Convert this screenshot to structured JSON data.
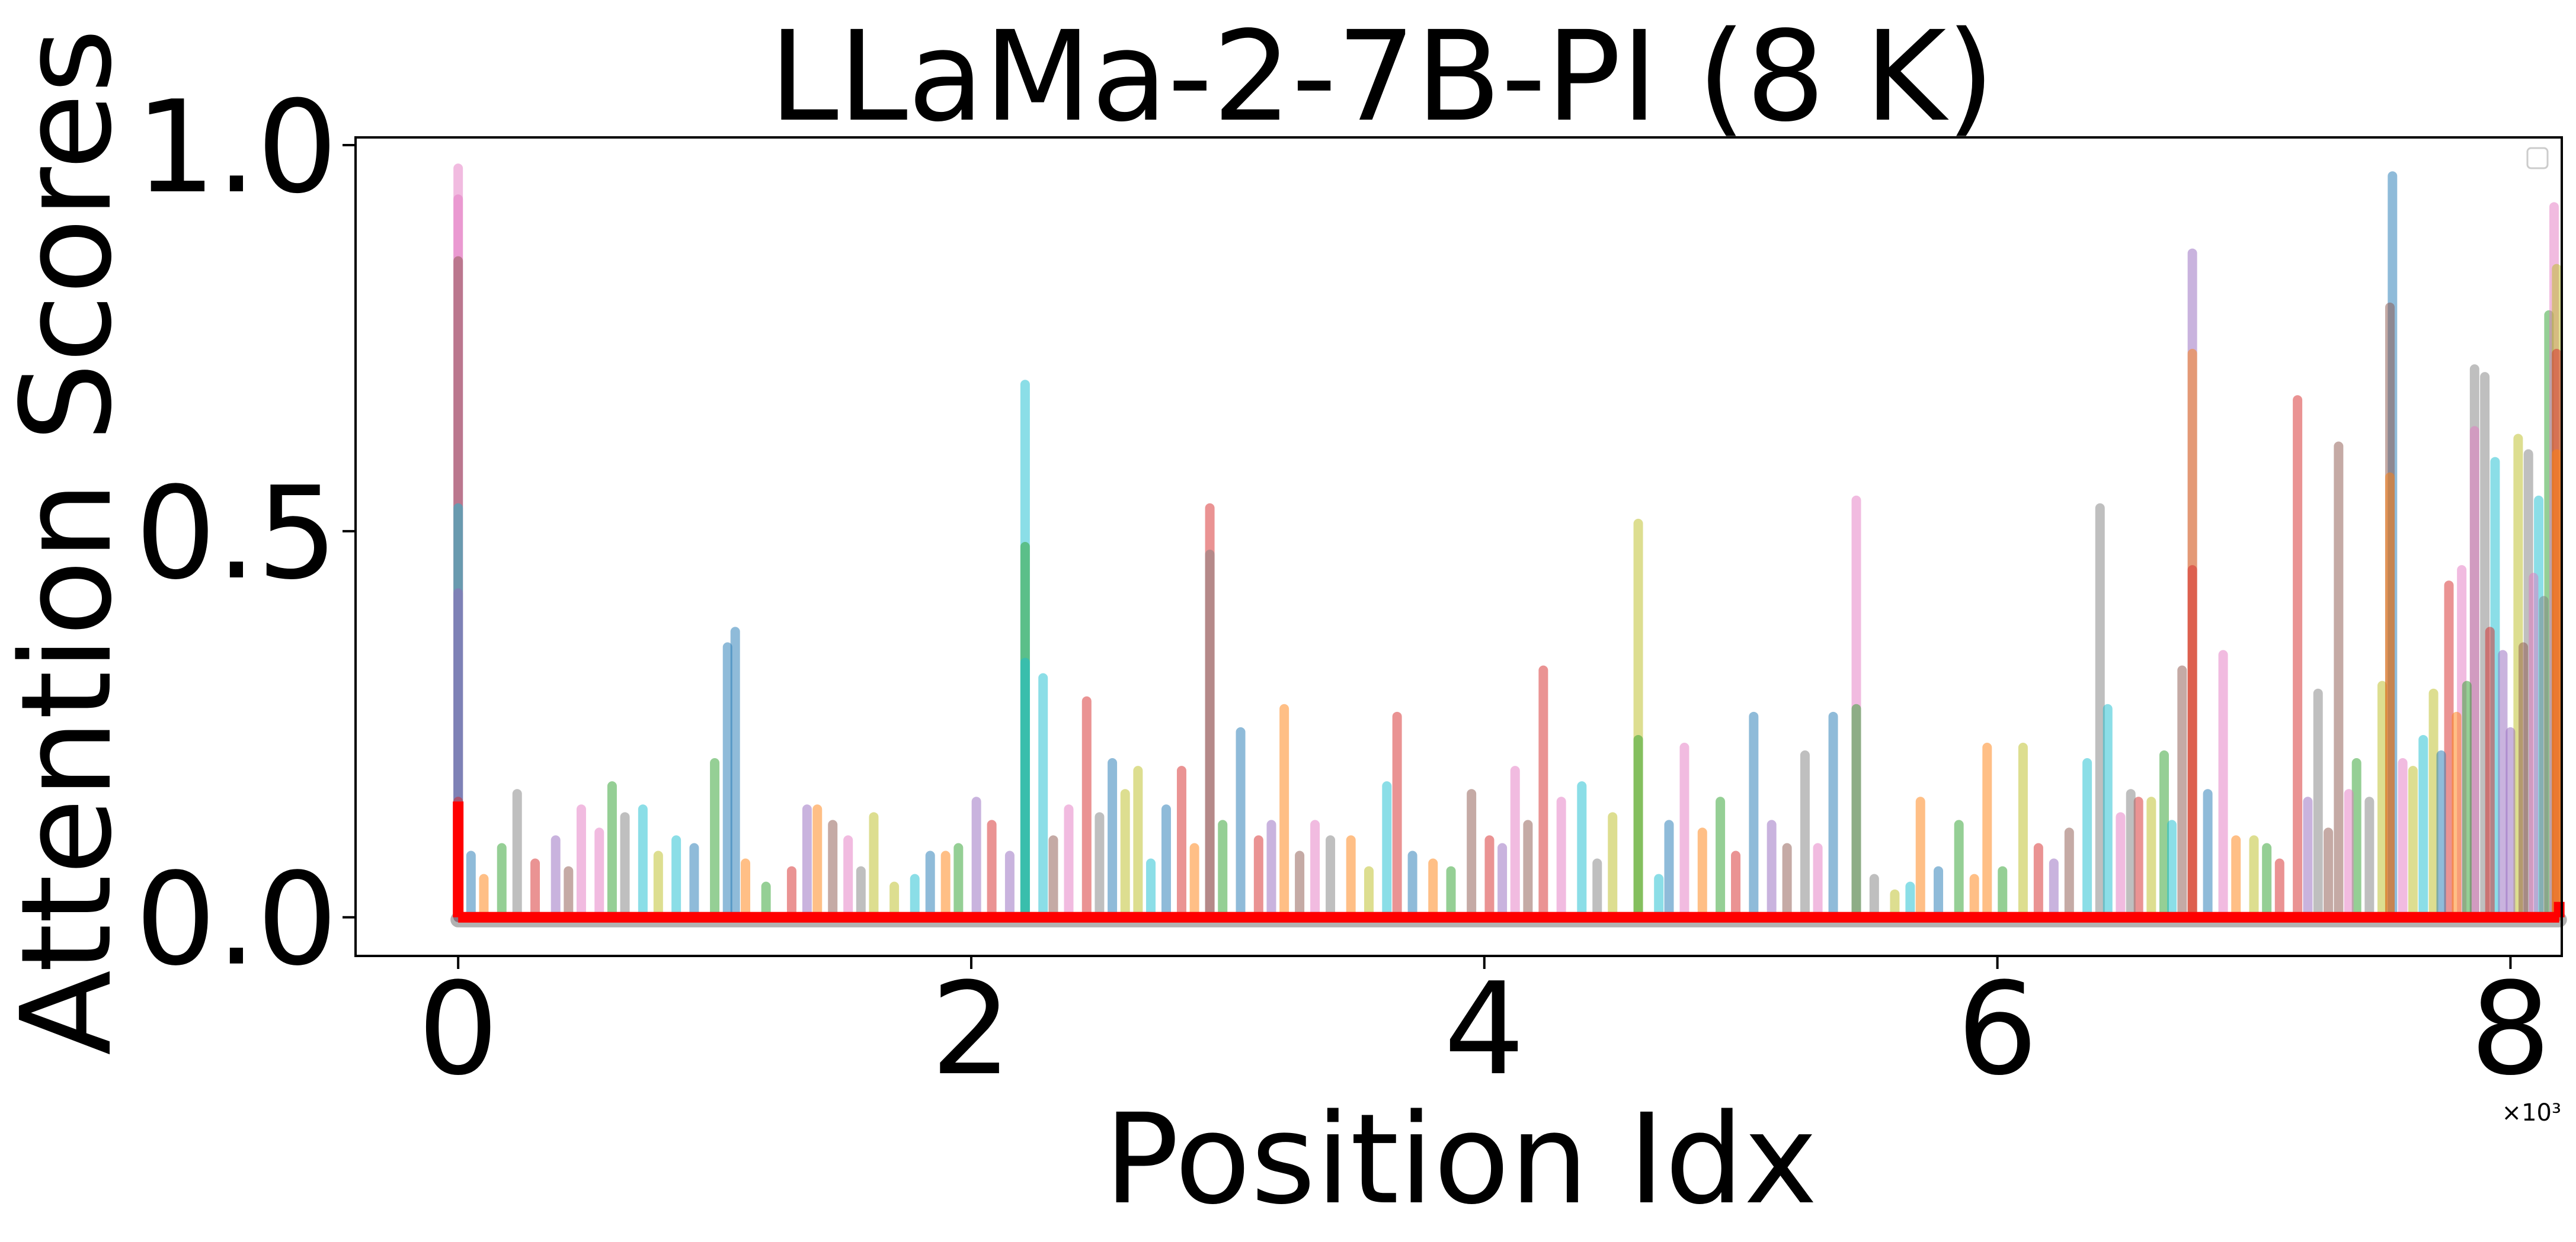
{
  "chart_data": {
    "type": "line",
    "title": "LLaMa-2-7B-PI (8 K)",
    "xlabel": "Position Idx",
    "ylabel": "Attention Scores",
    "x_multiplier_label": "×10³",
    "xlim": [
      -0.4,
      8.2
    ],
    "ylim": [
      -0.05,
      1.01
    ],
    "x_ticks": [
      0,
      2,
      4,
      6,
      8
    ],
    "y_ticks": [
      0.0,
      0.5,
      1.0
    ],
    "x_tick_labels": [
      "0",
      "2",
      "4",
      "6",
      "8"
    ],
    "y_tick_labels": [
      "0.0",
      "0.5",
      "1.0"
    ],
    "grid": false,
    "legend": {
      "placement": "top-right",
      "entries": []
    },
    "x_units": "thousands of positions",
    "series_colors": [
      "#1f77b4",
      "#ff7f0e",
      "#2ca02c",
      "#d62728",
      "#9467bd",
      "#8c564b",
      "#e377c2",
      "#7f7f7f",
      "#bcbd22",
      "#17becf"
    ],
    "baseline_series": {
      "color": "#ff0000",
      "y": 0.0,
      "x_range": [
        0,
        8.19
      ],
      "start_spike": 0.15
    },
    "spikes": [
      {
        "x": 0.0,
        "y": 0.97,
        "c": 6
      },
      {
        "x": 0.0,
        "y": 0.93,
        "c": 6
      },
      {
        "x": 0.0,
        "y": 0.85,
        "c": 5
      },
      {
        "x": 0.0,
        "y": 0.53,
        "c": 9
      },
      {
        "x": 0.0,
        "y": 0.42,
        "c": 4
      },
      {
        "x": 0.0,
        "y": 0.15,
        "c": 3
      },
      {
        "x": 0.23,
        "y": 0.16,
        "c": 7
      },
      {
        "x": 0.48,
        "y": 0.14,
        "c": 6
      },
      {
        "x": 0.6,
        "y": 0.17,
        "c": 2
      },
      {
        "x": 0.72,
        "y": 0.14,
        "c": 9
      },
      {
        "x": 1.0,
        "y": 0.2,
        "c": 2
      },
      {
        "x": 1.05,
        "y": 0.35,
        "c": 0
      },
      {
        "x": 1.08,
        "y": 0.37,
        "c": 0
      },
      {
        "x": 1.4,
        "y": 0.14,
        "c": 1
      },
      {
        "x": 1.62,
        "y": 0.13,
        "c": 8
      },
      {
        "x": 2.02,
        "y": 0.15,
        "c": 4
      },
      {
        "x": 2.21,
        "y": 0.69,
        "c": 9
      },
      {
        "x": 2.21,
        "y": 0.48,
        "c": 2
      },
      {
        "x": 2.21,
        "y": 0.33,
        "c": 9
      },
      {
        "x": 2.28,
        "y": 0.31,
        "c": 9
      },
      {
        "x": 2.45,
        "y": 0.28,
        "c": 3
      },
      {
        "x": 2.55,
        "y": 0.2,
        "c": 0
      },
      {
        "x": 2.65,
        "y": 0.19,
        "c": 8
      },
      {
        "x": 2.82,
        "y": 0.19,
        "c": 3
      },
      {
        "x": 2.93,
        "y": 0.53,
        "c": 3
      },
      {
        "x": 2.93,
        "y": 0.47,
        "c": 7
      },
      {
        "x": 3.05,
        "y": 0.24,
        "c": 0
      },
      {
        "x": 3.22,
        "y": 0.27,
        "c": 1
      },
      {
        "x": 3.48,
        "y": 0.1,
        "c": 1
      },
      {
        "x": 3.66,
        "y": 0.26,
        "c": 3
      },
      {
        "x": 3.95,
        "y": 0.16,
        "c": 5
      },
      {
        "x": 4.12,
        "y": 0.19,
        "c": 6
      },
      {
        "x": 4.23,
        "y": 0.32,
        "c": 3
      },
      {
        "x": 4.38,
        "y": 0.17,
        "c": 9
      },
      {
        "x": 4.6,
        "y": 0.51,
        "c": 8
      },
      {
        "x": 4.6,
        "y": 0.23,
        "c": 2
      },
      {
        "x": 4.78,
        "y": 0.22,
        "c": 6
      },
      {
        "x": 5.05,
        "y": 0.26,
        "c": 0
      },
      {
        "x": 5.25,
        "y": 0.21,
        "c": 7
      },
      {
        "x": 5.36,
        "y": 0.26,
        "c": 0
      },
      {
        "x": 5.45,
        "y": 0.54,
        "c": 6
      },
      {
        "x": 5.45,
        "y": 0.27,
        "c": 2
      },
      {
        "x": 5.7,
        "y": 0.15,
        "c": 1
      },
      {
        "x": 5.85,
        "y": 0.12,
        "c": 2
      },
      {
        "x": 5.96,
        "y": 0.22,
        "c": 1
      },
      {
        "x": 6.1,
        "y": 0.22,
        "c": 8
      },
      {
        "x": 6.35,
        "y": 0.2,
        "c": 9
      },
      {
        "x": 6.4,
        "y": 0.53,
        "c": 7
      },
      {
        "x": 6.43,
        "y": 0.27,
        "c": 9
      },
      {
        "x": 6.55,
        "y": 0.15,
        "c": 3
      },
      {
        "x": 6.65,
        "y": 0.21,
        "c": 2
      },
      {
        "x": 6.76,
        "y": 0.86,
        "c": 4
      },
      {
        "x": 6.76,
        "y": 0.73,
        "c": 1
      },
      {
        "x": 6.76,
        "y": 0.45,
        "c": 3
      },
      {
        "x": 6.72,
        "y": 0.32,
        "c": 5
      },
      {
        "x": 6.88,
        "y": 0.34,
        "c": 6
      },
      {
        "x": 7.0,
        "y": 0.1,
        "c": 8
      },
      {
        "x": 7.17,
        "y": 0.67,
        "c": 3
      },
      {
        "x": 7.25,
        "y": 0.29,
        "c": 7
      },
      {
        "x": 7.33,
        "y": 0.61,
        "c": 5
      },
      {
        "x": 7.4,
        "y": 0.2,
        "c": 2
      },
      {
        "x": 7.5,
        "y": 0.3,
        "c": 8
      },
      {
        "x": 7.54,
        "y": 0.96,
        "c": 0
      },
      {
        "x": 7.53,
        "y": 0.79,
        "c": 5
      },
      {
        "x": 7.53,
        "y": 0.57,
        "c": 1
      },
      {
        "x": 7.58,
        "y": 0.2,
        "c": 6
      },
      {
        "x": 7.7,
        "y": 0.29,
        "c": 8
      },
      {
        "x": 7.76,
        "y": 0.43,
        "c": 3
      },
      {
        "x": 7.81,
        "y": 0.45,
        "c": 6
      },
      {
        "x": 7.86,
        "y": 0.71,
        "c": 7
      },
      {
        "x": 7.86,
        "y": 0.63,
        "c": 6
      },
      {
        "x": 7.9,
        "y": 0.7,
        "c": 7
      },
      {
        "x": 7.94,
        "y": 0.59,
        "c": 9
      },
      {
        "x": 7.97,
        "y": 0.34,
        "c": 4
      },
      {
        "x": 8.03,
        "y": 0.62,
        "c": 8
      },
      {
        "x": 8.07,
        "y": 0.6,
        "c": 7
      },
      {
        "x": 8.11,
        "y": 0.54,
        "c": 9
      },
      {
        "x": 8.15,
        "y": 0.78,
        "c": 2
      },
      {
        "x": 8.17,
        "y": 0.92,
        "c": 6
      },
      {
        "x": 8.18,
        "y": 0.84,
        "c": 8
      },
      {
        "x": 8.18,
        "y": 0.73,
        "c": 3
      },
      {
        "x": 8.18,
        "y": 0.6,
        "c": 1
      }
    ],
    "noise_spikes": [
      {
        "x": 0.05,
        "y": 0.08
      },
      {
        "x": 0.1,
        "y": 0.05
      },
      {
        "x": 0.17,
        "y": 0.09
      },
      {
        "x": 0.3,
        "y": 0.07
      },
      {
        "x": 0.38,
        "y": 0.1
      },
      {
        "x": 0.43,
        "y": 0.06
      },
      {
        "x": 0.55,
        "y": 0.11
      },
      {
        "x": 0.65,
        "y": 0.13
      },
      {
        "x": 0.78,
        "y": 0.08
      },
      {
        "x": 0.85,
        "y": 0.1
      },
      {
        "x": 0.92,
        "y": 0.09
      },
      {
        "x": 1.12,
        "y": 0.07
      },
      {
        "x": 1.2,
        "y": 0.04
      },
      {
        "x": 1.3,
        "y": 0.06
      },
      {
        "x": 1.36,
        "y": 0.14
      },
      {
        "x": 1.46,
        "y": 0.12
      },
      {
        "x": 1.52,
        "y": 0.1
      },
      {
        "x": 1.57,
        "y": 0.06
      },
      {
        "x": 1.7,
        "y": 0.04
      },
      {
        "x": 1.78,
        "y": 0.05
      },
      {
        "x": 1.84,
        "y": 0.08
      },
      {
        "x": 1.9,
        "y": 0.08
      },
      {
        "x": 1.95,
        "y": 0.09
      },
      {
        "x": 2.08,
        "y": 0.12
      },
      {
        "x": 2.15,
        "y": 0.08
      },
      {
        "x": 2.32,
        "y": 0.1
      },
      {
        "x": 2.38,
        "y": 0.14
      },
      {
        "x": 2.5,
        "y": 0.13
      },
      {
        "x": 2.6,
        "y": 0.16
      },
      {
        "x": 2.7,
        "y": 0.07
      },
      {
        "x": 2.76,
        "y": 0.14
      },
      {
        "x": 2.87,
        "y": 0.09
      },
      {
        "x": 2.98,
        "y": 0.12
      },
      {
        "x": 3.12,
        "y": 0.1
      },
      {
        "x": 3.17,
        "y": 0.12
      },
      {
        "x": 3.28,
        "y": 0.08
      },
      {
        "x": 3.34,
        "y": 0.12
      },
      {
        "x": 3.4,
        "y": 0.1
      },
      {
        "x": 3.55,
        "y": 0.06
      },
      {
        "x": 3.62,
        "y": 0.17
      },
      {
        "x": 3.72,
        "y": 0.08
      },
      {
        "x": 3.8,
        "y": 0.07
      },
      {
        "x": 3.87,
        "y": 0.06
      },
      {
        "x": 4.02,
        "y": 0.1
      },
      {
        "x": 4.07,
        "y": 0.09
      },
      {
        "x": 4.17,
        "y": 0.12
      },
      {
        "x": 4.3,
        "y": 0.15
      },
      {
        "x": 4.44,
        "y": 0.07
      },
      {
        "x": 4.5,
        "y": 0.13
      },
      {
        "x": 4.68,
        "y": 0.05
      },
      {
        "x": 4.72,
        "y": 0.12
      },
      {
        "x": 4.85,
        "y": 0.11
      },
      {
        "x": 4.92,
        "y": 0.15
      },
      {
        "x": 4.98,
        "y": 0.08
      },
      {
        "x": 5.12,
        "y": 0.12
      },
      {
        "x": 5.18,
        "y": 0.09
      },
      {
        "x": 5.3,
        "y": 0.09
      },
      {
        "x": 5.52,
        "y": 0.05
      },
      {
        "x": 5.6,
        "y": 0.03
      },
      {
        "x": 5.66,
        "y": 0.04
      },
      {
        "x": 5.77,
        "y": 0.06
      },
      {
        "x": 5.91,
        "y": 0.05
      },
      {
        "x": 6.02,
        "y": 0.06
      },
      {
        "x": 6.16,
        "y": 0.09
      },
      {
        "x": 6.22,
        "y": 0.07
      },
      {
        "x": 6.28,
        "y": 0.11
      },
      {
        "x": 6.48,
        "y": 0.13
      },
      {
        "x": 6.52,
        "y": 0.16
      },
      {
        "x": 6.6,
        "y": 0.15
      },
      {
        "x": 6.68,
        "y": 0.12
      },
      {
        "x": 6.82,
        "y": 0.16
      },
      {
        "x": 6.93,
        "y": 0.1
      },
      {
        "x": 7.05,
        "y": 0.09
      },
      {
        "x": 7.1,
        "y": 0.07
      },
      {
        "x": 7.21,
        "y": 0.15
      },
      {
        "x": 7.29,
        "y": 0.11
      },
      {
        "x": 7.37,
        "y": 0.16
      },
      {
        "x": 7.45,
        "y": 0.15
      },
      {
        "x": 7.62,
        "y": 0.19
      },
      {
        "x": 7.66,
        "y": 0.23
      },
      {
        "x": 7.73,
        "y": 0.21
      },
      {
        "x": 7.79,
        "y": 0.26
      },
      {
        "x": 7.83,
        "y": 0.3
      },
      {
        "x": 7.92,
        "y": 0.37
      },
      {
        "x": 8.0,
        "y": 0.24
      },
      {
        "x": 8.05,
        "y": 0.35
      },
      {
        "x": 8.09,
        "y": 0.44
      },
      {
        "x": 8.13,
        "y": 0.41
      }
    ]
  }
}
